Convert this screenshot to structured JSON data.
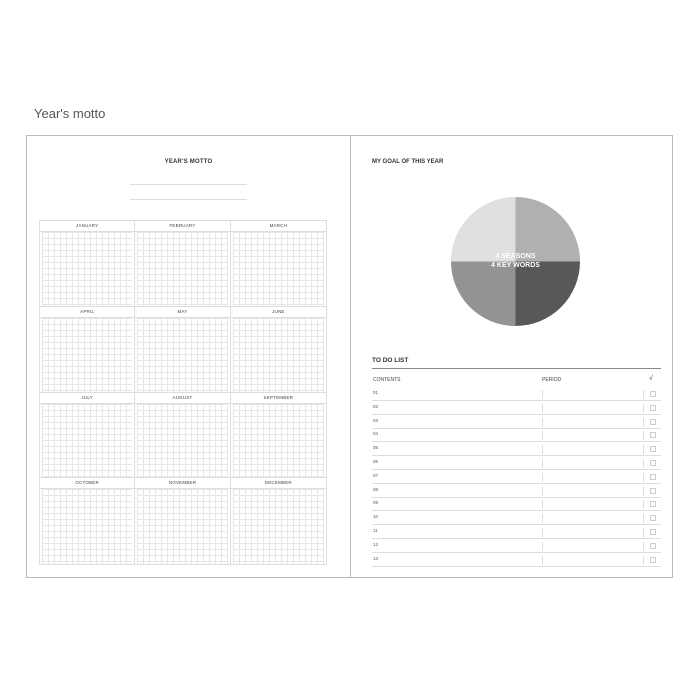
{
  "caption": "Year's motto",
  "left_page": {
    "title": "YEAR'S MOTTO",
    "months": [
      "JANUARY",
      "FEBRUARY",
      "MARCH",
      "APRIL",
      "MAY",
      "JUNE",
      "JULY",
      "AUGUST",
      "SEPTEMBER",
      "OCTOBER",
      "NOVEMBER",
      "DECEMBER"
    ]
  },
  "right_page": {
    "goal_title": "MY GOAL OF THIS YEAR",
    "pie": {
      "line1": "4 SEASONS",
      "line2": "4 KEY WORDS",
      "colors": [
        "#b0b0b2",
        "#58585a",
        "#939395",
        "#e0e0e2"
      ]
    },
    "todo": {
      "title": "TO DO LIST",
      "headers": {
        "contents": "CONTENTS",
        "period": "PERIOD",
        "check": "√"
      },
      "rows": [
        "01",
        "02",
        "03",
        "04",
        "05",
        "06",
        "07",
        "08",
        "09",
        "10",
        "11",
        "12",
        "13"
      ]
    }
  }
}
